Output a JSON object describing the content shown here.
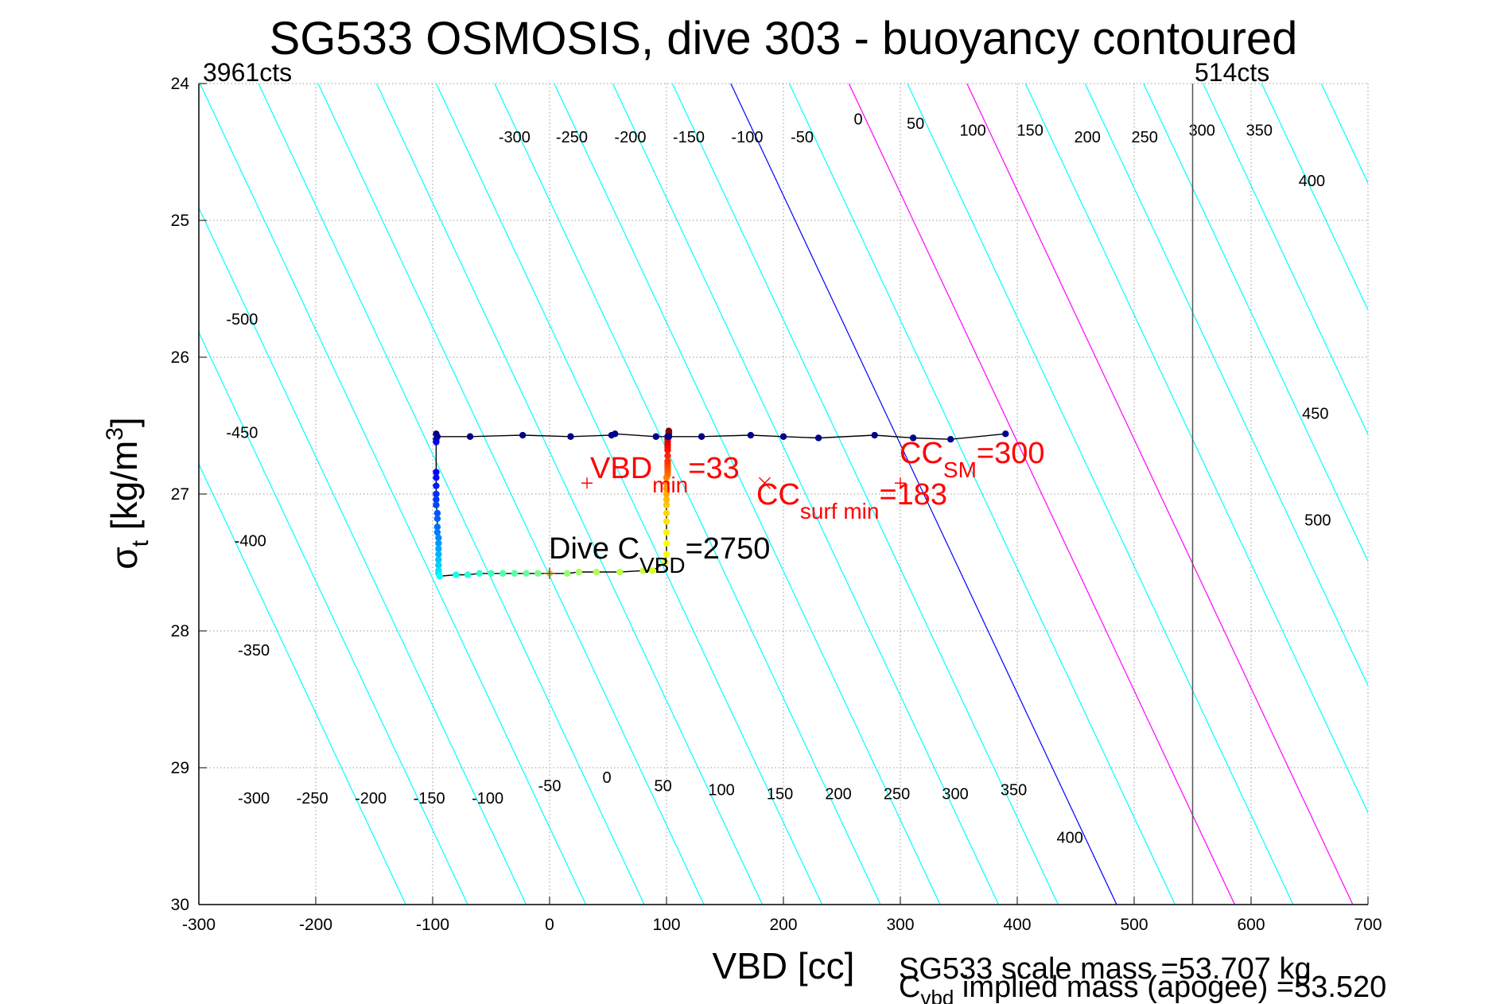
{
  "chart_data": {
    "type": "line",
    "title": "SG533 OSMOSIS, dive 303 - buoyancy contoured",
    "xlabel": "VBD [cc]",
    "ylabel": {
      "base": "σ",
      "sub": "t",
      "rest": " [kg/m",
      "sup": "3",
      "close": "]"
    },
    "xlim": [
      -300,
      700
    ],
    "ylim": [
      24,
      30
    ],
    "y_reversed": true,
    "grid": true,
    "xticks": [
      -300,
      -200,
      -100,
      0,
      100,
      200,
      300,
      400,
      500,
      600,
      700
    ],
    "yticks": [
      24,
      25,
      26,
      27,
      28,
      29,
      30
    ],
    "corner_labels": {
      "left": "3961cts",
      "right": "514cts"
    },
    "vbd_limit_line_x": 550,
    "contours": {
      "slope_cc_per_sigma": 55,
      "ref_sigma": 27.6,
      "lines": [
        {
          "level": -600,
          "x_ref": -255,
          "color": "#00ffff"
        },
        {
          "level": -550,
          "x_ref": -202,
          "color": "#00ffff"
        },
        {
          "level": -500,
          "x_ref": -152,
          "color": "#00ffff"
        },
        {
          "level": -450,
          "x_ref": -101,
          "color": "#00ffff"
        },
        {
          "level": -400,
          "x_ref": -51,
          "color": "#00ffff"
        },
        {
          "level": -350,
          "x_ref": 0,
          "color": "#00ffff"
        },
        {
          "level": -300,
          "x_ref": 50,
          "color": "#00ffff"
        },
        {
          "level": -250,
          "x_ref": 101,
          "color": "#00ffff"
        },
        {
          "level": -200,
          "x_ref": 151,
          "color": "#00ffff"
        },
        {
          "level": -150,
          "x_ref": 202,
          "color": "#00ffff"
        },
        {
          "level": -100,
          "x_ref": 252,
          "color": "#00ffff"
        },
        {
          "level": -50,
          "x_ref": 303,
          "color": "#00ffff"
        },
        {
          "level": 0,
          "x_ref": 353,
          "color": "#0000ff"
        },
        {
          "level": 50,
          "x_ref": 403,
          "color": "#00ffff"
        },
        {
          "level": 100,
          "x_ref": 454,
          "color": "#ff00ff"
        },
        {
          "level": 150,
          "x_ref": 504,
          "color": "#00ffff"
        },
        {
          "level": 200,
          "x_ref": 555,
          "color": "#ff00ff"
        },
        {
          "level": 250,
          "x_ref": 605,
          "color": "#00ffff"
        },
        {
          "level": 300,
          "x_ref": 656,
          "color": "#00ffff"
        },
        {
          "level": 350,
          "x_ref": 706,
          "color": "#00ffff"
        },
        {
          "level": 400,
          "x_ref": 757,
          "color": "#00ffff"
        },
        {
          "level": 450,
          "x_ref": 807,
          "color": "#00ffff"
        },
        {
          "level": 500,
          "x_ref": 858,
          "color": "#00ffff"
        },
        {
          "level": 550,
          "x_ref": 908,
          "color": "#00ffff"
        },
        {
          "level": 600,
          "x_ref": 959,
          "color": "#00ffff"
        }
      ],
      "labels_top": [
        {
          "text": "-300",
          "x": -30,
          "y": 24.4
        },
        {
          "text": "-250",
          "x": 19,
          "y": 24.4
        },
        {
          "text": "-200",
          "x": 69,
          "y": 24.4
        },
        {
          "text": "-150",
          "x": 119,
          "y": 24.4
        },
        {
          "text": "-100",
          "x": 169,
          "y": 24.4
        },
        {
          "text": "-50",
          "x": 216,
          "y": 24.4
        },
        {
          "text": "0",
          "x": 264,
          "y": 24.27
        },
        {
          "text": "50",
          "x": 313,
          "y": 24.3
        },
        {
          "text": "100",
          "x": 362,
          "y": 24.35
        },
        {
          "text": "150",
          "x": 411,
          "y": 24.35
        },
        {
          "text": "200",
          "x": 460,
          "y": 24.4
        },
        {
          "text": "250",
          "x": 509,
          "y": 24.4
        },
        {
          "text": "300",
          "x": 558,
          "y": 24.35
        },
        {
          "text": "350",
          "x": 607,
          "y": 24.35
        },
        {
          "text": "400",
          "x": 652,
          "y": 24.72
        }
      ],
      "labels_left": [
        {
          "text": "-500",
          "x": -263,
          "y": 25.73
        },
        {
          "text": "-450",
          "x": -263,
          "y": 26.56
        },
        {
          "text": "-400",
          "x": -256,
          "y": 27.35
        },
        {
          "text": "-350",
          "x": -253,
          "y": 28.15
        }
      ],
      "labels_bottom": [
        {
          "text": "-300",
          "x": -253,
          "y": 29.23
        },
        {
          "text": "-250",
          "x": -203,
          "y": 29.23
        },
        {
          "text": "-200",
          "x": -153,
          "y": 29.23
        },
        {
          "text": "-150",
          "x": -103,
          "y": 29.23
        },
        {
          "text": "-100",
          "x": -53,
          "y": 29.23
        },
        {
          "text": "-50",
          "x": 0,
          "y": 29.14
        },
        {
          "text": "0",
          "x": 49,
          "y": 29.08
        },
        {
          "text": "50",
          "x": 97,
          "y": 29.14
        },
        {
          "text": "100",
          "x": 147,
          "y": 29.17
        },
        {
          "text": "150",
          "x": 197,
          "y": 29.2
        },
        {
          "text": "200",
          "x": 247,
          "y": 29.2
        },
        {
          "text": "250",
          "x": 297,
          "y": 29.2
        },
        {
          "text": "300",
          "x": 347,
          "y": 29.2
        },
        {
          "text": "350",
          "x": 397,
          "y": 29.17
        },
        {
          "text": "400",
          "x": 445,
          "y": 29.52
        }
      ],
      "labels_right": [
        {
          "text": "450",
          "x": 655,
          "y": 26.42
        },
        {
          "text": "500",
          "x": 657,
          "y": 27.2
        }
      ]
    },
    "series": [
      {
        "name": "dive_profile",
        "color": "#000000",
        "x": [
          -97,
          -97,
          -97,
          -97,
          -97,
          -97,
          -97,
          -97,
          -96,
          -96,
          -96,
          -96,
          -95,
          -95,
          -95,
          -95,
          -95,
          -95,
          -95,
          -95,
          -94,
          -94,
          -80,
          -70,
          -60,
          -50,
          -40,
          -30,
          -20,
          -10,
          0,
          15,
          25,
          40,
          60,
          80,
          88,
          99,
          100,
          100,
          100,
          100,
          100,
          100,
          100,
          100,
          100,
          100,
          100,
          101,
          101,
          101,
          101,
          101,
          101,
          101,
          101,
          101,
          101,
          101,
          101,
          101,
          102,
          102,
          102,
          102,
          102,
          102
        ],
        "y": [
          26.6,
          26.62,
          26.84,
          26.88,
          26.94,
          27.0,
          27.04,
          27.08,
          27.14,
          27.18,
          27.24,
          27.28,
          27.32,
          27.36,
          27.4,
          27.44,
          27.48,
          27.52,
          27.56,
          27.58,
          27.6,
          27.6,
          27.59,
          27.59,
          27.58,
          27.58,
          27.58,
          27.58,
          27.58,
          27.58,
          27.58,
          27.58,
          27.57,
          27.57,
          27.57,
          27.56,
          27.56,
          27.5,
          27.44,
          27.36,
          27.28,
          27.2,
          27.14,
          27.08,
          27.04,
          27.0,
          26.96,
          26.92,
          26.88,
          26.86,
          26.84,
          26.82,
          26.8,
          26.78,
          26.76,
          26.72,
          26.68,
          26.66,
          26.64,
          26.62,
          26.6,
          26.58,
          26.56,
          26.56,
          26.55,
          26.55,
          26.54,
          26.54
        ]
      },
      {
        "name": "climb_buoyancy",
        "color": "#000000",
        "marker_color": "#00008b",
        "x": [
          -97,
          -96,
          -68,
          -23,
          18,
          53,
          56,
          91,
          101,
          102,
          130,
          172,
          200,
          230,
          278,
          311,
          343,
          390
        ],
        "y": [
          26.56,
          26.58,
          26.58,
          26.57,
          26.58,
          26.57,
          26.56,
          26.58,
          26.58,
          26.58,
          26.58,
          26.57,
          26.58,
          26.59,
          26.57,
          26.59,
          26.6,
          26.56
        ]
      }
    ],
    "annotations": [
      {
        "kind": "plus",
        "x": 32,
        "y": 26.92,
        "color": "#ff0000"
      },
      {
        "kind": "cross",
        "x": 184,
        "y": 26.92,
        "color": "#ff0000"
      },
      {
        "kind": "plus",
        "x": 300,
        "y": 26.92,
        "color": "#ff0000"
      },
      {
        "kind": "plus",
        "x": 0,
        "y": 27.58,
        "color": "#ff0000"
      }
    ],
    "text_labels": {
      "vbd_min": {
        "base": "VBD",
        "sub": "min",
        "rest": "=33"
      },
      "cc_surf_min": {
        "base": "CC",
        "sub": "surf min",
        "rest": "=183"
      },
      "cc_sm": {
        "base": "CC",
        "sub": "SM",
        "rest": "=300"
      },
      "dive_c_vbd": {
        "base": "Dive C",
        "sub": "VBD",
        "rest": "=2750"
      }
    },
    "footer": {
      "line1": "SG533 scale mass =53.707 kg",
      "line2": {
        "base": "C",
        "sub": "vbd",
        "rest": " implied mass (apogee) =53.520"
      }
    }
  }
}
